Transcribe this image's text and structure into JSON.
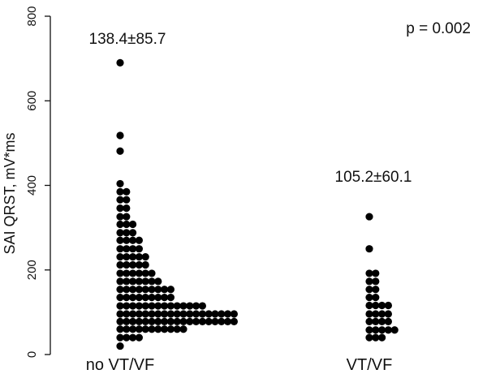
{
  "chart_data": {
    "type": "scatter",
    "subtype": "beeswarm",
    "ylabel": "SAI QRST, mV*ms",
    "ylim": [
      0,
      800
    ],
    "yticks": [
      0,
      200,
      400,
      600,
      800
    ],
    "categories": [
      "no VT/VF",
      "VT/VF"
    ],
    "grid": false,
    "point_color": "#000000",
    "annotations": {
      "p_value": "p = 0.002",
      "group_stats": [
        "138.4±85.7",
        "105.2±60.1"
      ]
    },
    "series": [
      {
        "category": "no VT/VF",
        "bins": [
          {
            "y": 20,
            "count": 1
          },
          {
            "y": 40,
            "count": 4
          },
          {
            "y": 60,
            "count": 11
          },
          {
            "y": 78,
            "count": 19
          },
          {
            "y": 96,
            "count": 19
          },
          {
            "y": 115,
            "count": 14
          },
          {
            "y": 135,
            "count": 9
          },
          {
            "y": 154,
            "count": 9
          },
          {
            "y": 173,
            "count": 7
          },
          {
            "y": 192,
            "count": 6
          },
          {
            "y": 212,
            "count": 5
          },
          {
            "y": 231,
            "count": 5
          },
          {
            "y": 250,
            "count": 4
          },
          {
            "y": 270,
            "count": 4
          },
          {
            "y": 288,
            "count": 3
          },
          {
            "y": 308,
            "count": 3
          },
          {
            "y": 326,
            "count": 2
          },
          {
            "y": 346,
            "count": 2
          },
          {
            "y": 366,
            "count": 2
          },
          {
            "y": 385,
            "count": 2
          },
          {
            "y": 404,
            "count": 1
          },
          {
            "y": 481,
            "count": 1
          },
          {
            "y": 518,
            "count": 1
          },
          {
            "y": 690,
            "count": 1
          }
        ]
      },
      {
        "category": "VT/VF",
        "bins": [
          {
            "y": 40,
            "count": 3
          },
          {
            "y": 58,
            "count": 5
          },
          {
            "y": 78,
            "count": 4
          },
          {
            "y": 96,
            "count": 4
          },
          {
            "y": 116,
            "count": 4
          },
          {
            "y": 135,
            "count": 2
          },
          {
            "y": 154,
            "count": 2
          },
          {
            "y": 173,
            "count": 2
          },
          {
            "y": 192,
            "count": 2
          },
          {
            "y": 250,
            "count": 1
          },
          {
            "y": 326,
            "count": 1
          }
        ]
      }
    ]
  }
}
